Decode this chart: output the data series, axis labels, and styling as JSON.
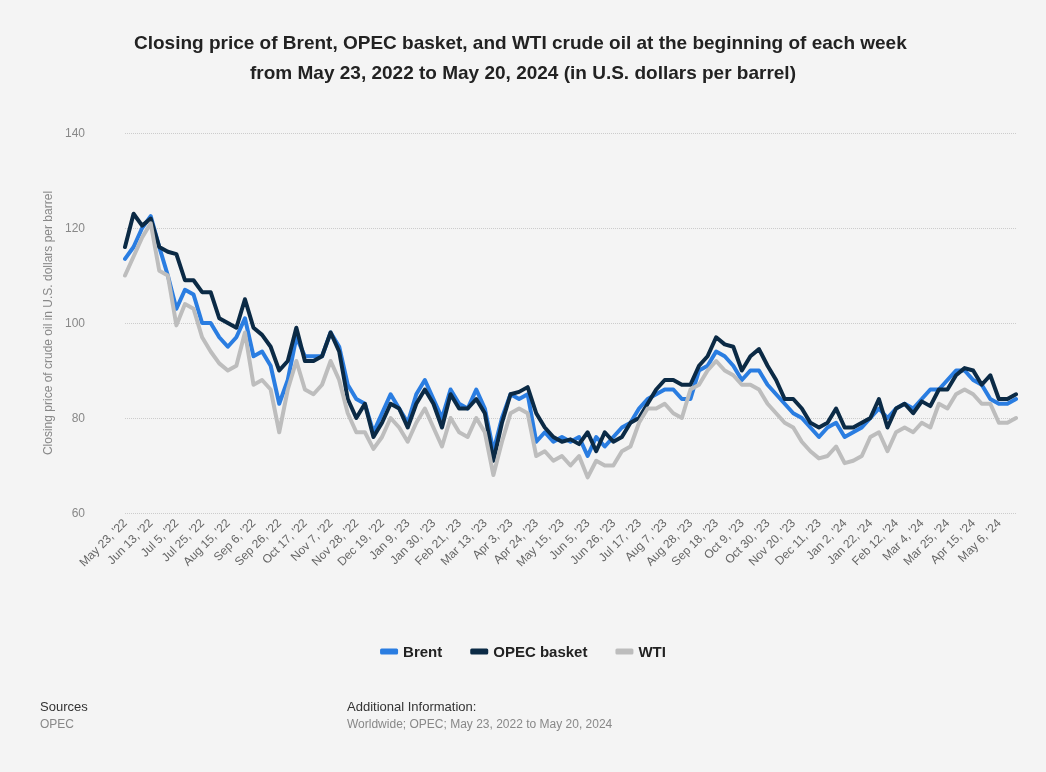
{
  "chart_data": {
    "type": "line",
    "title": "Closing price of Brent, OPEC basket, and WTI crude oil at the beginning of each week from May 23, 2022 to May 20, 2024 (in U.S. dollars per barrel)",
    "ylabel": "Closing price of crude oil in U.S. dollars per barrel",
    "categories": [
      "May 23, '22",
      null,
      null,
      "Jun 13, '22",
      null,
      null,
      "Jul 5, '22",
      null,
      null,
      "Jul 25, '22",
      null,
      null,
      "Aug 15, '22",
      null,
      null,
      "Sep 6, '22",
      null,
      null,
      "Sep 26, '22",
      null,
      null,
      "Oct 17, '22",
      null,
      null,
      "Nov 7, '22",
      null,
      null,
      "Nov 28, '22",
      null,
      null,
      "Dec 19, '22",
      null,
      null,
      "Jan 9, '23",
      null,
      null,
      "Jan 30, '23",
      null,
      null,
      "Feb 21, '23",
      null,
      null,
      "Mar 13, '23",
      null,
      null,
      "Apr 3, '23",
      null,
      null,
      "Apr 24, '23",
      null,
      null,
      "May 15, '23",
      null,
      null,
      "Jun 5, '23",
      null,
      null,
      "Jun 26, '23",
      null,
      null,
      "Jul 17, '23",
      null,
      null,
      "Aug 7, '23",
      null,
      null,
      "Aug 28, '23",
      null,
      null,
      "Sep 18, '23",
      null,
      null,
      "Oct 9, '23",
      null,
      null,
      "Oct 30, '23",
      null,
      null,
      "Nov 20, '23",
      null,
      null,
      "Dec 11, '23",
      null,
      null,
      "Jan 2, '24",
      null,
      null,
      "Jan 22, '24",
      null,
      null,
      "Feb 12, '24",
      null,
      null,
      "Mar 4, '24",
      null,
      null,
      "Mar 25, '24",
      null,
      null,
      "Apr 15, '24",
      null,
      null,
      "May 6, '24",
      null,
      null
    ],
    "series": [
      {
        "name": "Brent",
        "color": "#2a7de1",
        "values": [
          113.5,
          116,
          120,
          122.5,
          116,
          110,
          103,
          107,
          106,
          100,
          100,
          97,
          95,
          97,
          101,
          93,
          94,
          91,
          83,
          88,
          97,
          93,
          93,
          93,
          98,
          95,
          87,
          84,
          83,
          77,
          81,
          85,
          82,
          79,
          85,
          88,
          84,
          80,
          86,
          83,
          82,
          86,
          82,
          73,
          80,
          85,
          84,
          85,
          75,
          77,
          75,
          76,
          75,
          76,
          72,
          76,
          74,
          76,
          78,
          79,
          82,
          84,
          85,
          86,
          86,
          84,
          84,
          90,
          91,
          94,
          93,
          91,
          88,
          90,
          90,
          87,
          85,
          83,
          81,
          80,
          78,
          76,
          78,
          79,
          76,
          77,
          78,
          80,
          82,
          80,
          82,
          83,
          82,
          84,
          86,
          86,
          88,
          90,
          90,
          88,
          87,
          84,
          83,
          83,
          84
        ]
      },
      {
        "name": "OPEC basket",
        "color": "#0b2a45",
        "values": [
          116,
          123,
          120.5,
          122,
          116,
          115,
          114.5,
          109,
          109,
          106.5,
          106.5,
          101,
          100,
          99,
          105,
          99,
          97.5,
          95,
          90,
          92,
          99,
          92,
          92,
          93,
          98,
          94,
          84,
          80,
          83,
          76,
          79,
          83,
          82,
          78,
          83,
          86,
          83,
          78,
          85,
          82,
          82,
          84,
          81,
          71,
          79,
          85,
          85.5,
          86.5,
          81,
          78,
          76,
          75,
          75.5,
          74.5,
          77,
          73,
          77,
          75,
          76,
          79,
          80,
          83,
          86,
          88,
          88,
          87,
          87,
          91,
          93,
          97,
          95.5,
          95,
          90,
          93,
          94.5,
          91,
          88,
          84,
          84,
          82,
          79,
          78,
          79,
          82,
          78,
          78,
          79,
          80,
          84,
          78,
          82,
          83,
          81,
          83.5,
          82.5,
          86,
          86,
          89,
          90.5,
          90,
          87,
          89,
          84,
          84,
          85
        ]
      },
      {
        "name": "WTI",
        "color": "#bdbdbd",
        "values": [
          110,
          114,
          118,
          121,
          111,
          110,
          99.5,
          104,
          103,
          97,
          94,
          91.5,
          90,
          91,
          98,
          87,
          88,
          86,
          77,
          86,
          92,
          86,
          85,
          87,
          92,
          88,
          81,
          77,
          77,
          73.5,
          76,
          80,
          78,
          75,
          79,
          82,
          78,
          74,
          80,
          77,
          76,
          80,
          77,
          68,
          75,
          81,
          82,
          81,
          72,
          73,
          71,
          72,
          70,
          72,
          67.5,
          71,
          70,
          70,
          73,
          74,
          79,
          82,
          82,
          83,
          81,
          80,
          86,
          87,
          90,
          92,
          90,
          89,
          87,
          87,
          86,
          83,
          81,
          79,
          78,
          75,
          73,
          71.5,
          72,
          74,
          70.5,
          71,
          72,
          76,
          77,
          73,
          77,
          78,
          77,
          79,
          78,
          83,
          82,
          85,
          86,
          85,
          83,
          83,
          79,
          79,
          80
        ]
      }
    ],
    "ylim": [
      60,
      140
    ],
    "yticks": [
      60,
      80,
      100,
      120,
      140
    ],
    "grid": "y",
    "legend": "bottom",
    "marker": "none",
    "line_style": "solid",
    "annotations": [
      "Sources",
      "OPEC",
      "Additional Information:",
      "Worldwide; OPEC; May 23, 2022 to May 20, 2024"
    ]
  }
}
